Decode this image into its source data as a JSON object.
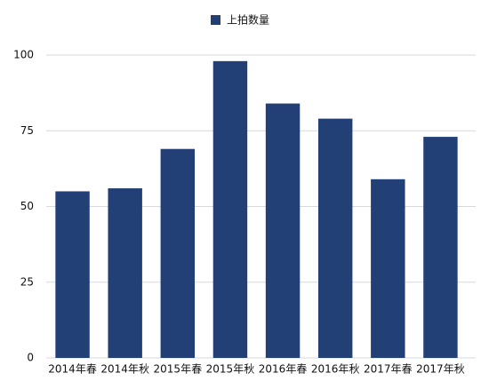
{
  "chart_data": {
    "type": "bar",
    "legend": "上拍数量",
    "legend_position": "top",
    "categories": [
      "2014年春",
      "2014年秋",
      "2015年春",
      "2015年秋",
      "2016年春",
      "2016年秋",
      "2017年春",
      "2017年秋"
    ],
    "values": [
      55,
      56,
      69,
      98,
      84,
      79,
      59,
      73
    ],
    "color": "#223f76",
    "ylim": [
      0,
      100
    ],
    "yticks": [
      0,
      25,
      50,
      75,
      100
    ],
    "grid": true
  }
}
